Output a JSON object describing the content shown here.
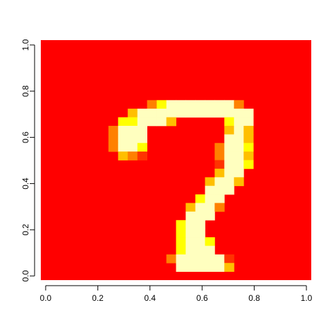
{
  "chart_data": {
    "type": "heatmap",
    "title": "",
    "xlabel": "",
    "ylabel": "",
    "xlim": [
      0,
      1
    ],
    "ylim": [
      0,
      1
    ],
    "x_ticks": [
      "0.0",
      "0.2",
      "0.4",
      "0.6",
      "0.8",
      "1.0"
    ],
    "y_ticks": [
      "0.0",
      "0.2",
      "0.4",
      "0.6",
      "0.8",
      "1.0"
    ],
    "grid_size": 28,
    "color_scale": [
      "#ff0000",
      "#ff3300",
      "#ff8000",
      "#ffbf00",
      "#ffff00",
      "#ffffbf"
    ],
    "level_scale": "0 = background (red) to 5 = brightest (pale yellow); row 0 is the top row, col 0 the left column",
    "rows": [
      "............................",
      "............................",
      "............................",
      "............................",
      "............................",
      "............................",
      "............................",
      "...........2455555552.......",
      ".........3555555555555......",
      "........445553.....455......",
      ".......2555........353......",
      ".......2555........553......",
      ".......2554.......2554......",
      "........321.......2553......",
      "..................1554......",
      "..................355.......",
      ".................3553.......",
      ".................555........",
      "................455.........",
      "...............3552.........",
      "...............555..........",
      "..............455...........",
      "..............455...........",
      "..............4554..........",
      "..............4555..........",
      ".............2555551........",
      "..............555553........",
      "............................"
    ]
  }
}
